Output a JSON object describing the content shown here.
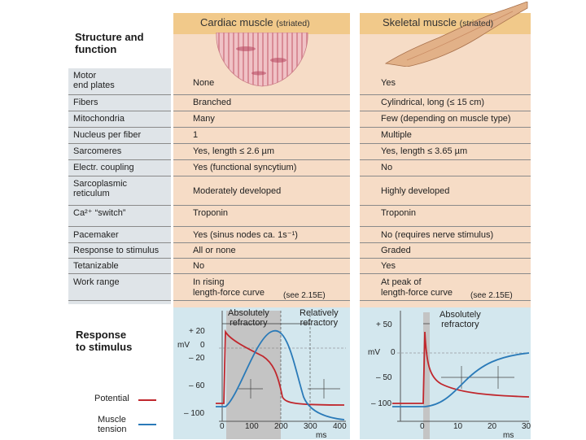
{
  "header": {
    "cardiac_title": "Cardiac muscle",
    "cardiac_suffix": "(striated)",
    "skeletal_title": "Skeletal muscle",
    "skeletal_suffix": "(striated)",
    "structure_title_1": "Structure and",
    "structure_title_2": "function"
  },
  "rows": [
    {
      "label": [
        "Motor",
        "end plates"
      ],
      "cardiac": "None",
      "skeletal": "Yes"
    },
    {
      "label": [
        "Fibers"
      ],
      "cardiac": "Branched",
      "skeletal": "Cylindrical, long (≤ 15 cm)"
    },
    {
      "label": [
        "Mitochondria"
      ],
      "cardiac": "Many",
      "skeletal": "Few (depending on muscle type)"
    },
    {
      "label": [
        "Nucleus per fiber"
      ],
      "cardiac": "1",
      "skeletal": "Multiple"
    },
    {
      "label": [
        "Sarcomeres"
      ],
      "cardiac": "Yes, length ≤ 2.6 µm",
      "skeletal": "Yes, length ≤ 3.65 µm"
    },
    {
      "label": [
        "Electr. coupling"
      ],
      "cardiac": "Yes (functional syncytium)",
      "skeletal": "No"
    },
    {
      "label": [
        "Sarcoplasmic",
        "reticulum"
      ],
      "cardiac": "Moderately developed",
      "skeletal": "Highly developed"
    },
    {
      "label": [
        "Ca²⁺ “switch”"
      ],
      "cardiac": "Troponin",
      "skeletal": "Troponin"
    },
    {
      "label": [
        "Pacemaker"
      ],
      "cardiac": "Yes (sinus nodes ca. 1s⁻¹)",
      "skeletal": "No (requires nerve stimulus)"
    },
    {
      "label": [
        "Response to stimulus"
      ],
      "cardiac": "All or none",
      "skeletal": "Graded"
    },
    {
      "label": [
        "Tetanizable"
      ],
      "cardiac": "No",
      "skeletal": "Yes"
    },
    {
      "label": [
        "Work range"
      ],
      "cardiac": [
        "In rising",
        "length-force curve"
      ],
      "skeletal": [
        "At peak of",
        "length-force curve"
      ]
    }
  ],
  "work_range_ref": {
    "cardiac": "(see 2.15E)",
    "skeletal": "(see 2.15E)"
  },
  "response": {
    "title_1": "Response",
    "title_2": "to stimulus",
    "legend_potential": "Potential",
    "legend_tension_1": "Muscle",
    "legend_tension_2": "tension",
    "cardiac_abs_1": "Absolutely",
    "cardiac_abs_2": "refractory",
    "cardiac_rel_1": "Relatively",
    "cardiac_rel_2": "refractory",
    "skeletal_abs_1": "Absolutely",
    "skeletal_abs_2": "refractory",
    "unit_mv": "mV",
    "unit_ms": "ms",
    "cardiac_y_ticks": [
      "+ 20",
      "0",
      "– 20",
      "– 60",
      "– 100"
    ],
    "cardiac_x_ticks": [
      "0",
      "100",
      "200",
      "300",
      "400"
    ],
    "skeletal_y_ticks": [
      "+ 50",
      "0",
      "– 50",
      "– 100"
    ],
    "skeletal_x_ticks": [
      "0",
      "10",
      "20",
      "30"
    ]
  },
  "colors": {
    "column_bg": "#f6dcc6",
    "header_band": "#f1c98a",
    "label_band": "#dfe4e8",
    "graph_bg": "#d3e7ee",
    "refractory_shade": "#c4c4c4",
    "potential": "#c0272d",
    "tension": "#2a7ab8"
  }
}
